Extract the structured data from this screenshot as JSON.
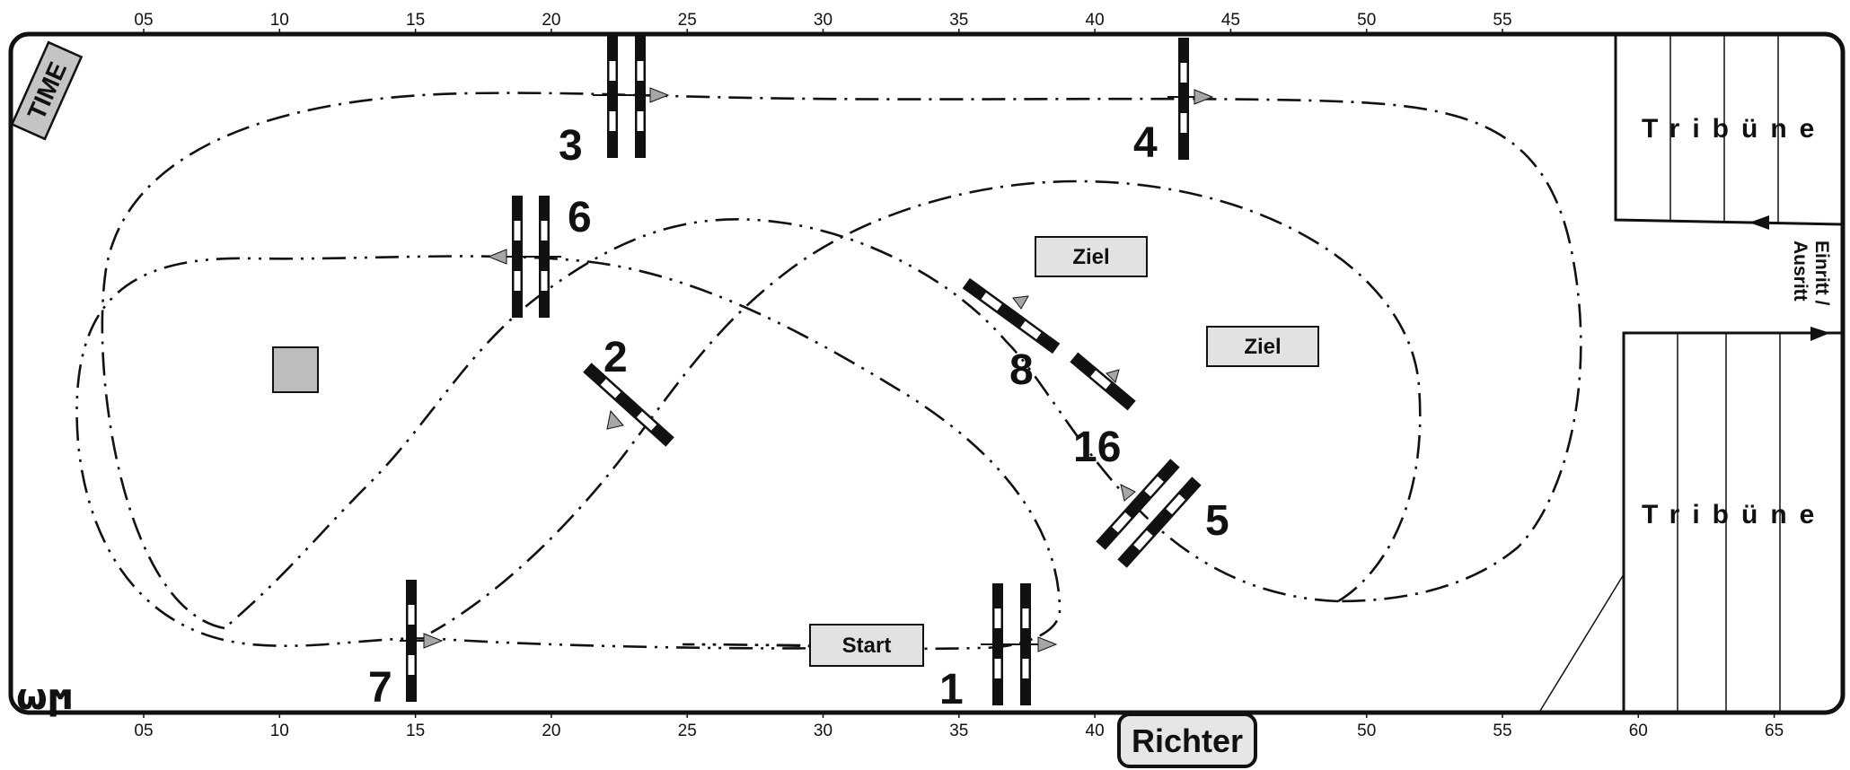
{
  "ruler": {
    "top": [
      "05",
      "10",
      "15",
      "20",
      "25",
      "30",
      "35",
      "40",
      "45",
      "50",
      "55"
    ],
    "bottom": [
      "05",
      "10",
      "15",
      "20",
      "25",
      "30",
      "35",
      "40",
      "45",
      "50",
      "55",
      "60",
      "65"
    ]
  },
  "obstacles": {
    "o1": "1",
    "o2": "2",
    "o3": "3",
    "o4": "4",
    "o5": "5",
    "o6": "6",
    "o7": "7",
    "o8": "8",
    "o16": "16"
  },
  "labels": {
    "time": "TIME",
    "richter": "Richter",
    "start": "Start",
    "ziel": "Ziel",
    "tribune": "Tribüne",
    "gate_line1": "Einritt /",
    "gate_line2": "Ausritt",
    "logo": "ωϻ"
  },
  "colors": {
    "outline": "#111111",
    "box_fill": "#e2e2e2",
    "time_fill": "#c4c4c4",
    "arrow_fill": "#a6a6a6",
    "square_fill": "#bdbdbd"
  }
}
